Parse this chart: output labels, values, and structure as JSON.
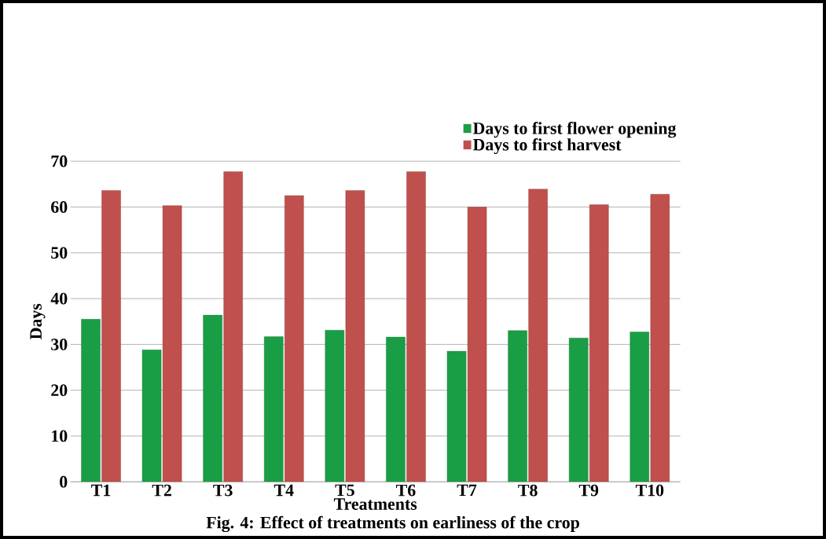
{
  "chart_data": {
    "type": "bar",
    "xlabel": "Treatments",
    "ylabel": "Days",
    "categories": [
      "T1",
      "T2",
      "T3",
      "T4",
      "T5",
      "T6",
      "T7",
      "T8",
      "T9",
      "T10"
    ],
    "series": [
      {
        "name": "Days to first flower opening",
        "color": "#1a9e45",
        "values": [
          35.5,
          28.8,
          36.4,
          31.7,
          33.1,
          31.6,
          28.5,
          33.0,
          31.4,
          32.7
        ]
      },
      {
        "name": "Days to first harvest",
        "color": "#c0504d",
        "values": [
          63.6,
          60.3,
          67.7,
          62.5,
          63.6,
          67.7,
          60.0,
          63.9,
          60.5,
          62.8
        ]
      }
    ],
    "ylim": [
      0,
      70
    ],
    "yticks": [
      0,
      10,
      20,
      30,
      40,
      50,
      60,
      70
    ],
    "grid": "y",
    "legend": "top right",
    "annotations": [
      "Fig. 4: Effect of treatments on earliness of the crop"
    ]
  }
}
